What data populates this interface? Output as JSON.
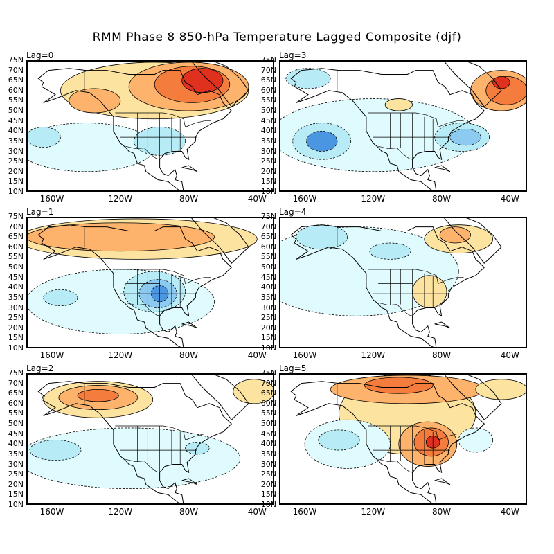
{
  "title": "RMM Phase 8 850-hPa Temperature Lagged Composite (djf)",
  "lat_labels": [
    "75N",
    "70N",
    "65N",
    "60N",
    "55N",
    "50N",
    "45N",
    "40N",
    "35N",
    "30N",
    "25N",
    "20N",
    "15N",
    "10N"
  ],
  "lon_labels": [
    "160W",
    "120W",
    "80W",
    "40W"
  ],
  "colors": {
    "warm1": "#fde3a0",
    "warm2": "#fdb36b",
    "warm3": "#f47c3c",
    "warm4": "#e0301e",
    "cool1": "#e0fbfd",
    "cool2": "#b7ecf7",
    "cool3": "#8ccaf2",
    "cool4": "#4a96e0",
    "frame": "#000000"
  },
  "panels": [
    {
      "label": "Lag=0",
      "blobs": [
        {
          "c": "warm1",
          "lon": -100,
          "lat": 60,
          "rx": 55,
          "ry": 14
        },
        {
          "c": "warm2",
          "lon": -80,
          "lat": 62,
          "rx": 35,
          "ry": 12
        },
        {
          "c": "warm2",
          "lon": -135,
          "lat": 55,
          "rx": 15,
          "ry": 6
        },
        {
          "c": "warm3",
          "lon": -78,
          "lat": 63,
          "rx": 22,
          "ry": 9
        },
        {
          "c": "warm4",
          "lon": -72,
          "lat": 65,
          "rx": 12,
          "ry": 6
        },
        {
          "c": "cool1",
          "lon": -140,
          "lat": 32,
          "rx": 40,
          "ry": 12
        },
        {
          "c": "cool2",
          "lon": -165,
          "lat": 37,
          "rx": 10,
          "ry": 5
        },
        {
          "c": "cool2",
          "lon": -97,
          "lat": 35,
          "rx": 15,
          "ry": 7
        }
      ]
    },
    {
      "label": "Lag=3",
      "blobs": [
        {
          "c": "cool1",
          "lon": -120,
          "lat": 38,
          "rx": 60,
          "ry": 18
        },
        {
          "c": "cool2",
          "lon": -150,
          "lat": 35,
          "rx": 17,
          "ry": 9
        },
        {
          "c": "cool4",
          "lon": -150,
          "lat": 35,
          "rx": 9,
          "ry": 5
        },
        {
          "c": "cool2",
          "lon": -68,
          "lat": 37,
          "rx": 16,
          "ry": 7
        },
        {
          "c": "cool3",
          "lon": -66,
          "lat": 37,
          "rx": 9,
          "ry": 4
        },
        {
          "c": "cool2",
          "lon": -158,
          "lat": 66,
          "rx": 13,
          "ry": 5
        },
        {
          "c": "warm1",
          "lon": -105,
          "lat": 53,
          "rx": 8,
          "ry": 3
        },
        {
          "c": "warm2",
          "lon": -45,
          "lat": 60,
          "rx": 18,
          "ry": 10
        },
        {
          "c": "warm3",
          "lon": -42,
          "lat": 60,
          "rx": 12,
          "ry": 7
        },
        {
          "c": "warm4",
          "lon": -45,
          "lat": 64,
          "rx": 5,
          "ry": 3
        }
      ]
    },
    {
      "label": "Lag=1",
      "blobs": [
        {
          "c": "warm1",
          "lon": -110,
          "lat": 64,
          "rx": 70,
          "ry": 10
        },
        {
          "c": "warm2",
          "lon": -120,
          "lat": 65,
          "rx": 55,
          "ry": 7
        },
        {
          "c": "cool1",
          "lon": -120,
          "lat": 33,
          "rx": 55,
          "ry": 16
        },
        {
          "c": "cool2",
          "lon": -100,
          "lat": 38,
          "rx": 18,
          "ry": 10
        },
        {
          "c": "cool3",
          "lon": -98,
          "lat": 37,
          "rx": 11,
          "ry": 7
        },
        {
          "c": "cool4",
          "lon": -97,
          "lat": 37,
          "rx": 5,
          "ry": 4
        },
        {
          "c": "cool2",
          "lon": -155,
          "lat": 35,
          "rx": 10,
          "ry": 4
        }
      ]
    },
    {
      "label": "Lag=4",
      "blobs": [
        {
          "c": "cool1",
          "lon": -130,
          "lat": 48,
          "rx": 60,
          "ry": 22
        },
        {
          "c": "cool2",
          "lon": -150,
          "lat": 65,
          "rx": 15,
          "ry": 6
        },
        {
          "c": "cool2",
          "lon": -110,
          "lat": 58,
          "rx": 12,
          "ry": 4
        },
        {
          "c": "warm1",
          "lon": -87,
          "lat": 38,
          "rx": 10,
          "ry": 8
        },
        {
          "c": "warm1",
          "lon": -70,
          "lat": 64,
          "rx": 20,
          "ry": 7
        },
        {
          "c": "warm2",
          "lon": -72,
          "lat": 66,
          "rx": 9,
          "ry": 4
        }
      ]
    },
    {
      "label": "Lag=2",
      "blobs": [
        {
          "c": "cool1",
          "lon": -115,
          "lat": 33,
          "rx": 65,
          "ry": 15
        },
        {
          "c": "cool2",
          "lon": -158,
          "lat": 37,
          "rx": 15,
          "ry": 5
        },
        {
          "c": "cool2",
          "lon": -75,
          "lat": 38,
          "rx": 7,
          "ry": 3
        },
        {
          "c": "warm1",
          "lon": -133,
          "lat": 62,
          "rx": 32,
          "ry": 9
        },
        {
          "c": "warm2",
          "lon": -133,
          "lat": 63,
          "rx": 23,
          "ry": 6
        },
        {
          "c": "warm3",
          "lon": -133,
          "lat": 64,
          "rx": 12,
          "ry": 3
        },
        {
          "c": "warm1",
          "lon": -42,
          "lat": 66,
          "rx": 12,
          "ry": 6
        }
      ]
    },
    {
      "label": "Lag=5",
      "blobs": [
        {
          "c": "warm1",
          "lon": -100,
          "lat": 55,
          "rx": 40,
          "ry": 20
        },
        {
          "c": "warm2",
          "lon": -100,
          "lat": 67,
          "rx": 45,
          "ry": 7
        },
        {
          "c": "warm3",
          "lon": -105,
          "lat": 69,
          "rx": 20,
          "ry": 4
        },
        {
          "c": "warm2",
          "lon": -88,
          "lat": 40,
          "rx": 17,
          "ry": 11
        },
        {
          "c": "warm3",
          "lon": -86,
          "lat": 41,
          "rx": 10,
          "ry": 7
        },
        {
          "c": "warm4",
          "lon": -85,
          "lat": 41,
          "rx": 4,
          "ry": 3
        },
        {
          "c": "warm1",
          "lon": -45,
          "lat": 67,
          "rx": 15,
          "ry": 5
        },
        {
          "c": "cool1",
          "lon": -135,
          "lat": 40,
          "rx": 25,
          "ry": 12
        },
        {
          "c": "cool2",
          "lon": -140,
          "lat": 42,
          "rx": 12,
          "ry": 5
        },
        {
          "c": "cool1",
          "lon": -60,
          "lat": 42,
          "rx": 10,
          "ry": 6
        }
      ]
    }
  ]
}
